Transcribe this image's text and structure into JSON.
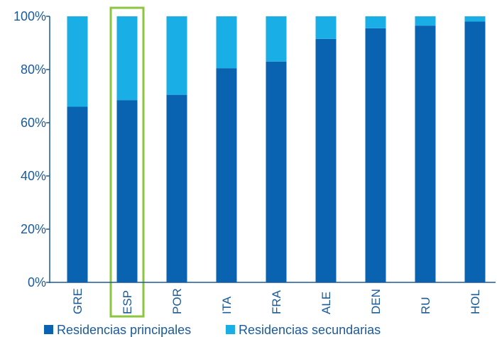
{
  "chart_data": {
    "type": "bar",
    "stacked": true,
    "categories": [
      "GRE",
      "ESP",
      "POR",
      "ITA",
      "FRA",
      "ALE",
      "DEN",
      "RU",
      "HOL"
    ],
    "series": [
      {
        "name": "Residencias principales",
        "color": "#0a63b1",
        "values": [
          66,
          68.5,
          70.5,
          80.5,
          83,
          91.5,
          95.5,
          96.5,
          98
        ]
      },
      {
        "name": "Residencias secundarias",
        "color": "#19aee6",
        "values": [
          34,
          31.5,
          29.5,
          19.5,
          17,
          8.5,
          4.5,
          3.5,
          2
        ]
      }
    ],
    "ylim": [
      0,
      100
    ],
    "yticks": [
      "0%",
      "20%",
      "40%",
      "60%",
      "80%",
      "100%"
    ],
    "ytick_values": [
      0,
      20,
      40,
      60,
      80,
      100
    ],
    "highlight_category": "ESP",
    "highlight_color": "#8cc63f",
    "grid": false,
    "legend_position": "bottom"
  }
}
